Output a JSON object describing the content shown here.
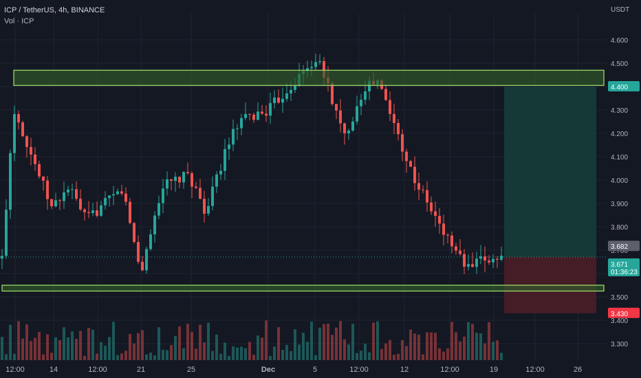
{
  "header": {
    "symbol_line": "ICP / TetherUS, 4h, BINANCE",
    "volume_label": "Vol · ICP",
    "currency": "USDT"
  },
  "colors": {
    "background": "#141823",
    "grid": "#1f2330",
    "up": "#26a69a",
    "down": "#ef5350",
    "zone_border": "#a5e36b",
    "zone_fill": "#2f5a2a",
    "target_fill": "#143d3a",
    "stop_fill": "#4a1e28",
    "text": "#d1d4dc",
    "axis_text": "#b2b5be",
    "label_target": "#26a69a",
    "label_stop": "#f23645",
    "label_gray": "#5d606b"
  },
  "chart_data": {
    "type": "candlestick",
    "title": "ICP / TetherUS, 4h, BINANCE",
    "ylabel": "USDT",
    "ylim": [
      3.23,
      4.72
    ],
    "y_ticks": [
      3.3,
      3.4,
      3.5,
      3.6,
      3.7,
      3.8,
      3.9,
      4.0,
      4.1,
      4.2,
      4.3,
      4.4,
      4.5,
      4.6
    ],
    "y_tick_labels": [
      "3.300",
      "3.400",
      "3.500",
      "3.600",
      "3.700",
      "3.800",
      "3.900",
      "4.000",
      "4.100",
      "4.200",
      "4.300",
      "4.400",
      "4.500",
      "4.600"
    ],
    "x_tick_labels": [
      "12:00",
      "14",
      "12:00",
      "21",
      "25",
      "Dec",
      "5",
      "12:00",
      "12",
      "12:00",
      "19",
      "12:00",
      "26"
    ],
    "price_labels": {
      "target": {
        "value": "4.400",
        "level": 4.4
      },
      "previous_close": {
        "value": "3.682",
        "level": 3.682
      },
      "last": {
        "value": "3.671",
        "countdown": "01:36:23",
        "level": 3.671
      },
      "stop": {
        "value": "3.430",
        "level": 3.43
      }
    },
    "zones": [
      {
        "name": "resistance",
        "low": 4.405,
        "high": 4.47
      },
      {
        "name": "support",
        "low": 3.525,
        "high": 3.55
      }
    ],
    "position": {
      "entry": 3.671,
      "target": 4.4,
      "stop": 3.43
    },
    "series": [
      {
        "segment": "start",
        "value": 3.55
      },
      {
        "segment": "nov12",
        "value": 4.31
      },
      {
        "segment": "nov14",
        "value": 3.88
      },
      {
        "segment": "nov17",
        "value": 3.97
      },
      {
        "segment": "nov19",
        "value": 3.83
      },
      {
        "segment": "nov20",
        "value": 3.96
      },
      {
        "segment": "nov21",
        "value": 3.6
      },
      {
        "segment": "nov24",
        "value": 3.97
      },
      {
        "segment": "nov26",
        "value": 4.02
      },
      {
        "segment": "nov27",
        "value": 3.86
      },
      {
        "segment": "nov29",
        "value": 4.15
      },
      {
        "segment": "dec01",
        "value": 4.25
      },
      {
        "segment": "dec03",
        "value": 4.3
      },
      {
        "segment": "dec05",
        "value": 4.52
      },
      {
        "segment": "dec06",
        "value": 4.42
      },
      {
        "segment": "dec08",
        "value": 4.18
      },
      {
        "segment": "dec09",
        "value": 4.4
      },
      {
        "segment": "dec11",
        "value": 4.42
      },
      {
        "segment": "dec13",
        "value": 4.17
      },
      {
        "segment": "dec15",
        "value": 4.02
      },
      {
        "segment": "dec16",
        "value": 3.8
      },
      {
        "segment": "dec17",
        "value": 3.62
      },
      {
        "segment": "dec19",
        "value": 3.66
      },
      {
        "segment": "dec20",
        "value": 3.671
      }
    ]
  }
}
